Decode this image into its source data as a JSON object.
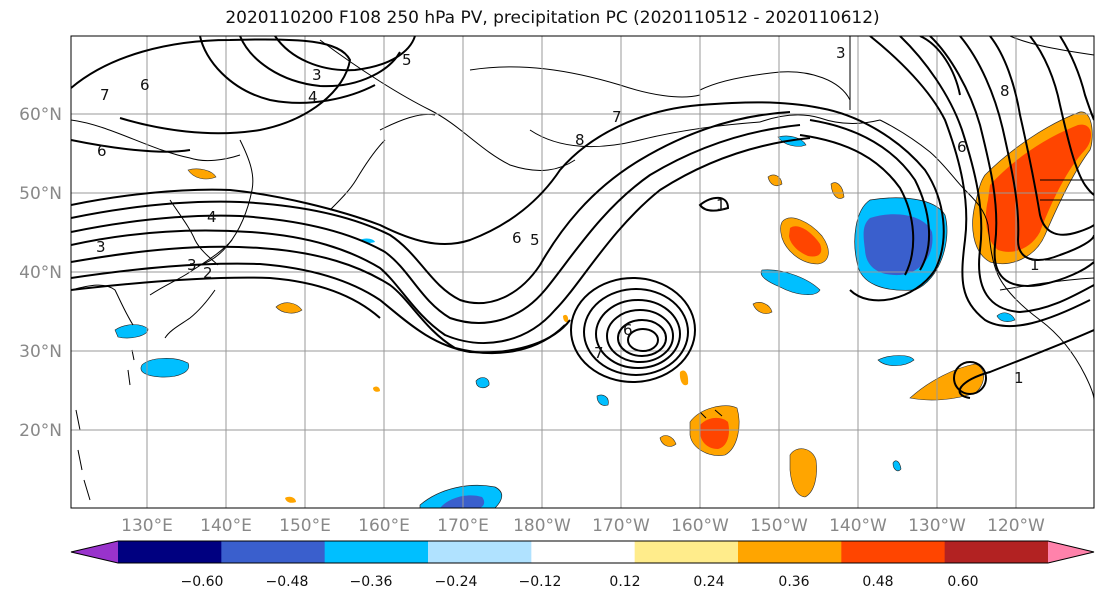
{
  "title": "2020110200 F108 250 hPa PV, precipitation PC (2020110512 - 2020110612)",
  "lat_labels": [
    "60°N",
    "50°N",
    "40°N",
    "30°N",
    "20°N"
  ],
  "lon_labels": [
    "130°E",
    "140°E",
    "150°E",
    "160°E",
    "170°E",
    "180°W",
    "170°W",
    "160°W",
    "150°W",
    "140°W",
    "130°W",
    "120°W"
  ],
  "contour_labels": [
    "6",
    "7",
    "3",
    "4",
    "5",
    "6",
    "3",
    "8",
    "6",
    "4",
    "3",
    "2",
    "6",
    "5",
    "8",
    "7",
    "1",
    "6",
    "3",
    "7",
    "1",
    "1"
  ],
  "colorbar": {
    "ticks": [
      "−0.60",
      "−0.48",
      "−0.36",
      "−0.24",
      "−0.12",
      "0.12",
      "0.24",
      "0.36",
      "0.48",
      "0.60"
    ],
    "colors": [
      "#9933cc",
      "#000080",
      "#3a5fcd",
      "#00bfff",
      "#b0e2ff",
      "#ffffff",
      "#ffec8b",
      "#ffa500",
      "#ff4500",
      "#b22222",
      "#ff82ab"
    ]
  }
}
